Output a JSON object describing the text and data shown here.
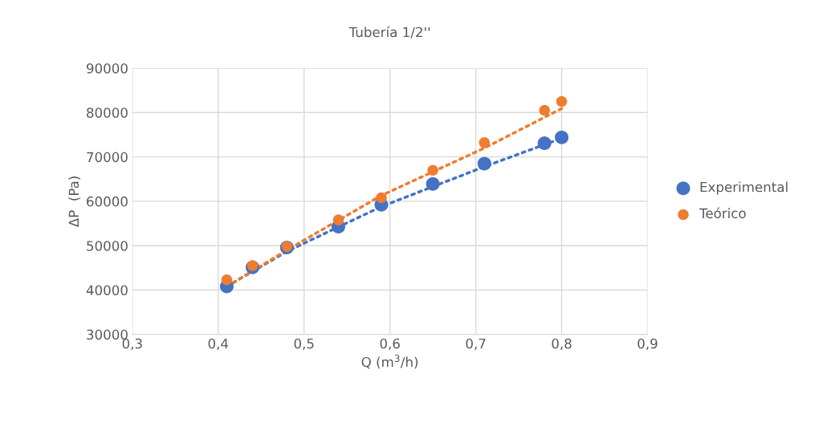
{
  "chart_data": {
    "type": "scatter",
    "title": "Tubería 1/2''",
    "xlabel": "Q (m$^{3}$/h)",
    "ylabel": "ΔP  (Pa)",
    "xlim": [
      0.3,
      0.9
    ],
    "xticks": [
      {
        "value": 0.3,
        "label": "0,3"
      },
      {
        "value": 0.4,
        "label": "0,4"
      },
      {
        "value": 0.5,
        "label": "0,5"
      },
      {
        "value": 0.6,
        "label": "0,6"
      },
      {
        "value": 0.7,
        "label": "0,7"
      },
      {
        "value": 0.8,
        "label": "0,8"
      },
      {
        "value": 0.9,
        "label": "0,9"
      }
    ],
    "ylim": [
      30000,
      90000
    ],
    "yticks": [
      30000,
      40000,
      50000,
      60000,
      70000,
      80000,
      90000
    ],
    "grid": true,
    "legend": "right",
    "marker": "circle",
    "series": [
      {
        "name": "Experimental",
        "color": "#4472c4",
        "x": [
          0.41,
          0.44,
          0.48,
          0.54,
          0.59,
          0.65,
          0.71,
          0.78,
          0.8
        ],
        "values": [
          40800,
          45100,
          49600,
          54300,
          59200,
          63900,
          68500,
          73100,
          74400
        ]
      },
      {
        "name": "Teórico",
        "color": "#ed7d31",
        "x": [
          0.41,
          0.44,
          0.48,
          0.54,
          0.59,
          0.65,
          0.71,
          0.78,
          0.8
        ],
        "values": [
          42300,
          45500,
          49800,
          55800,
          60800,
          67000,
          73200,
          80500,
          82500
        ]
      },
      {
        "type": "line",
        "line_style": "dotted",
        "marker": "none",
        "color": "#4472c4",
        "x": [
          0.41,
          0.48,
          0.59,
          0.71,
          0.8
        ],
        "values": [
          40800,
          48700,
          58800,
          67800,
          74200
        ]
      },
      {
        "type": "line",
        "line_style": "dotted",
        "marker": "none",
        "color": "#ed7d31",
        "x": [
          0.41,
          0.48,
          0.59,
          0.71,
          0.8
        ],
        "values": [
          40800,
          49000,
          61300,
          72000,
          80900
        ]
      }
    ]
  }
}
